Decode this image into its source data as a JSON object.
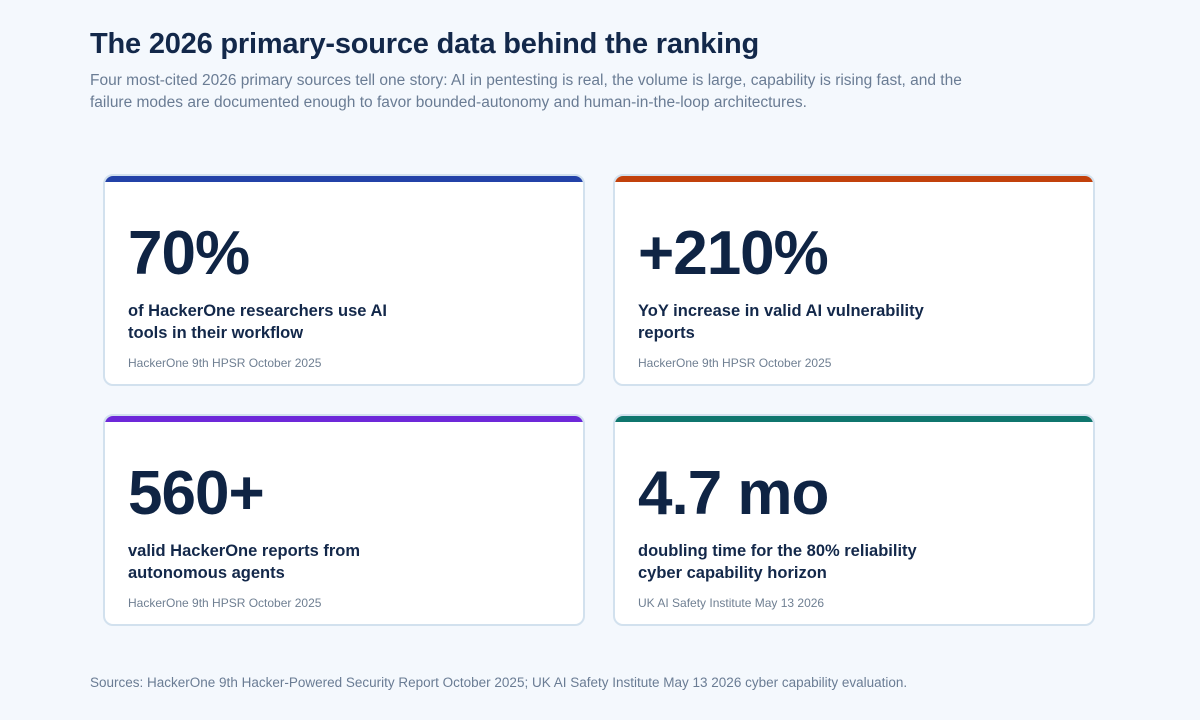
{
  "header": {
    "title": "The 2026 primary-source data behind the ranking",
    "subtitle": "Four most-cited 2026 primary sources tell one story: AI in pentesting is real, the volume is large, capability is rising fast, and the failure modes are documented enough to favor bounded-autonomy and human-in-the-loop architectures."
  },
  "cards": [
    {
      "stat": "70%",
      "description": "of HackerOne researchers use AI tools in their workflow",
      "source": "HackerOne 9th HPSR October 2025",
      "accent_color": "#2342a8"
    },
    {
      "stat": "+210%",
      "description": "YoY increase in valid AI vulnerability reports",
      "source": "HackerOne 9th HPSR October 2025",
      "accent_color": "#c2410c"
    },
    {
      "stat": "560+",
      "description": "valid HackerOne reports from autonomous agents",
      "source": "HackerOne 9th HPSR October 2025",
      "accent_color": "#6d28d9"
    },
    {
      "stat": "4.7 mo",
      "description": "doubling time for the 80% reliability cyber capability horizon",
      "source": "UK AI Safety Institute May 13 2026",
      "accent_color": "#0f766e"
    }
  ],
  "footer": {
    "sources": "Sources: HackerOne 9th Hacker-Powered Security Report October 2025; UK AI Safety Institute May 13 2026 cyber capability evaluation."
  }
}
